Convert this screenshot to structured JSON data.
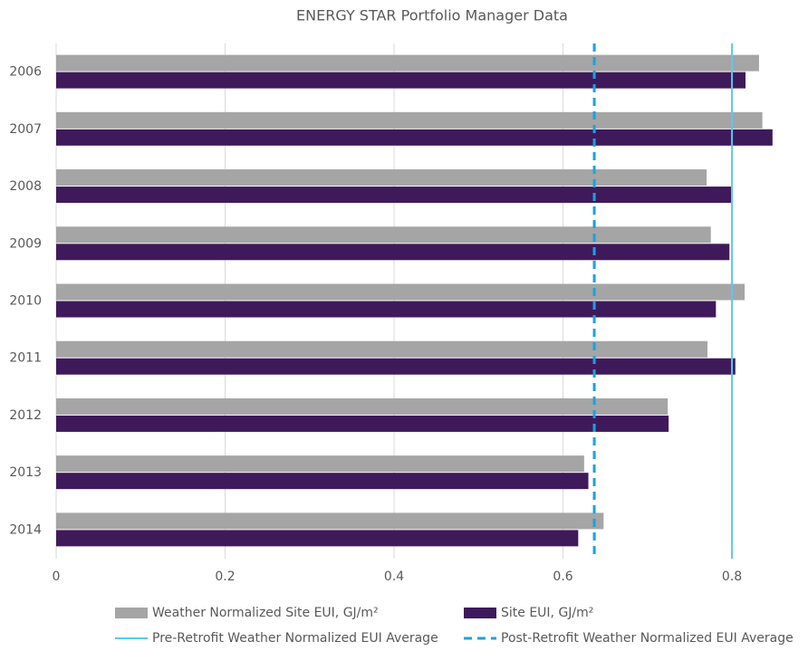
{
  "chart_data": {
    "type": "hbar",
    "title": "ENERGY STAR Portfolio Manager Data",
    "categories": [
      "2006",
      "2007",
      "2008",
      "2009",
      "2010",
      "2011",
      "2012",
      "2013",
      "2014"
    ],
    "series": [
      {
        "name": "Weather Normalized Site EUI, GJ/m²",
        "color": "#a5a5a5",
        "values": [
          0.832,
          0.836,
          0.77,
          0.775,
          0.815,
          0.771,
          0.724,
          0.625,
          0.648
        ]
      },
      {
        "name": "Site EUI, GJ/m²",
        "color": "#3f1a5b",
        "values": [
          0.816,
          0.848,
          0.799,
          0.797,
          0.781,
          0.804,
          0.725,
          0.63,
          0.618
        ]
      }
    ],
    "reference_lines": [
      {
        "name": "Pre-Retrofit Weather Normalized EUI Average",
        "color": "#5bc8f0",
        "line_style": "solid",
        "value": 0.8
      },
      {
        "name": "Post-Retrofit Weather Normalized EUI Average",
        "color": "#1ba1e2",
        "line_style": "dashed",
        "value": 0.637
      }
    ],
    "xlim": [
      0,
      0.89
    ],
    "xticks": [
      0,
      0.2,
      0.4,
      0.6,
      0.8
    ],
    "grid": true
  }
}
